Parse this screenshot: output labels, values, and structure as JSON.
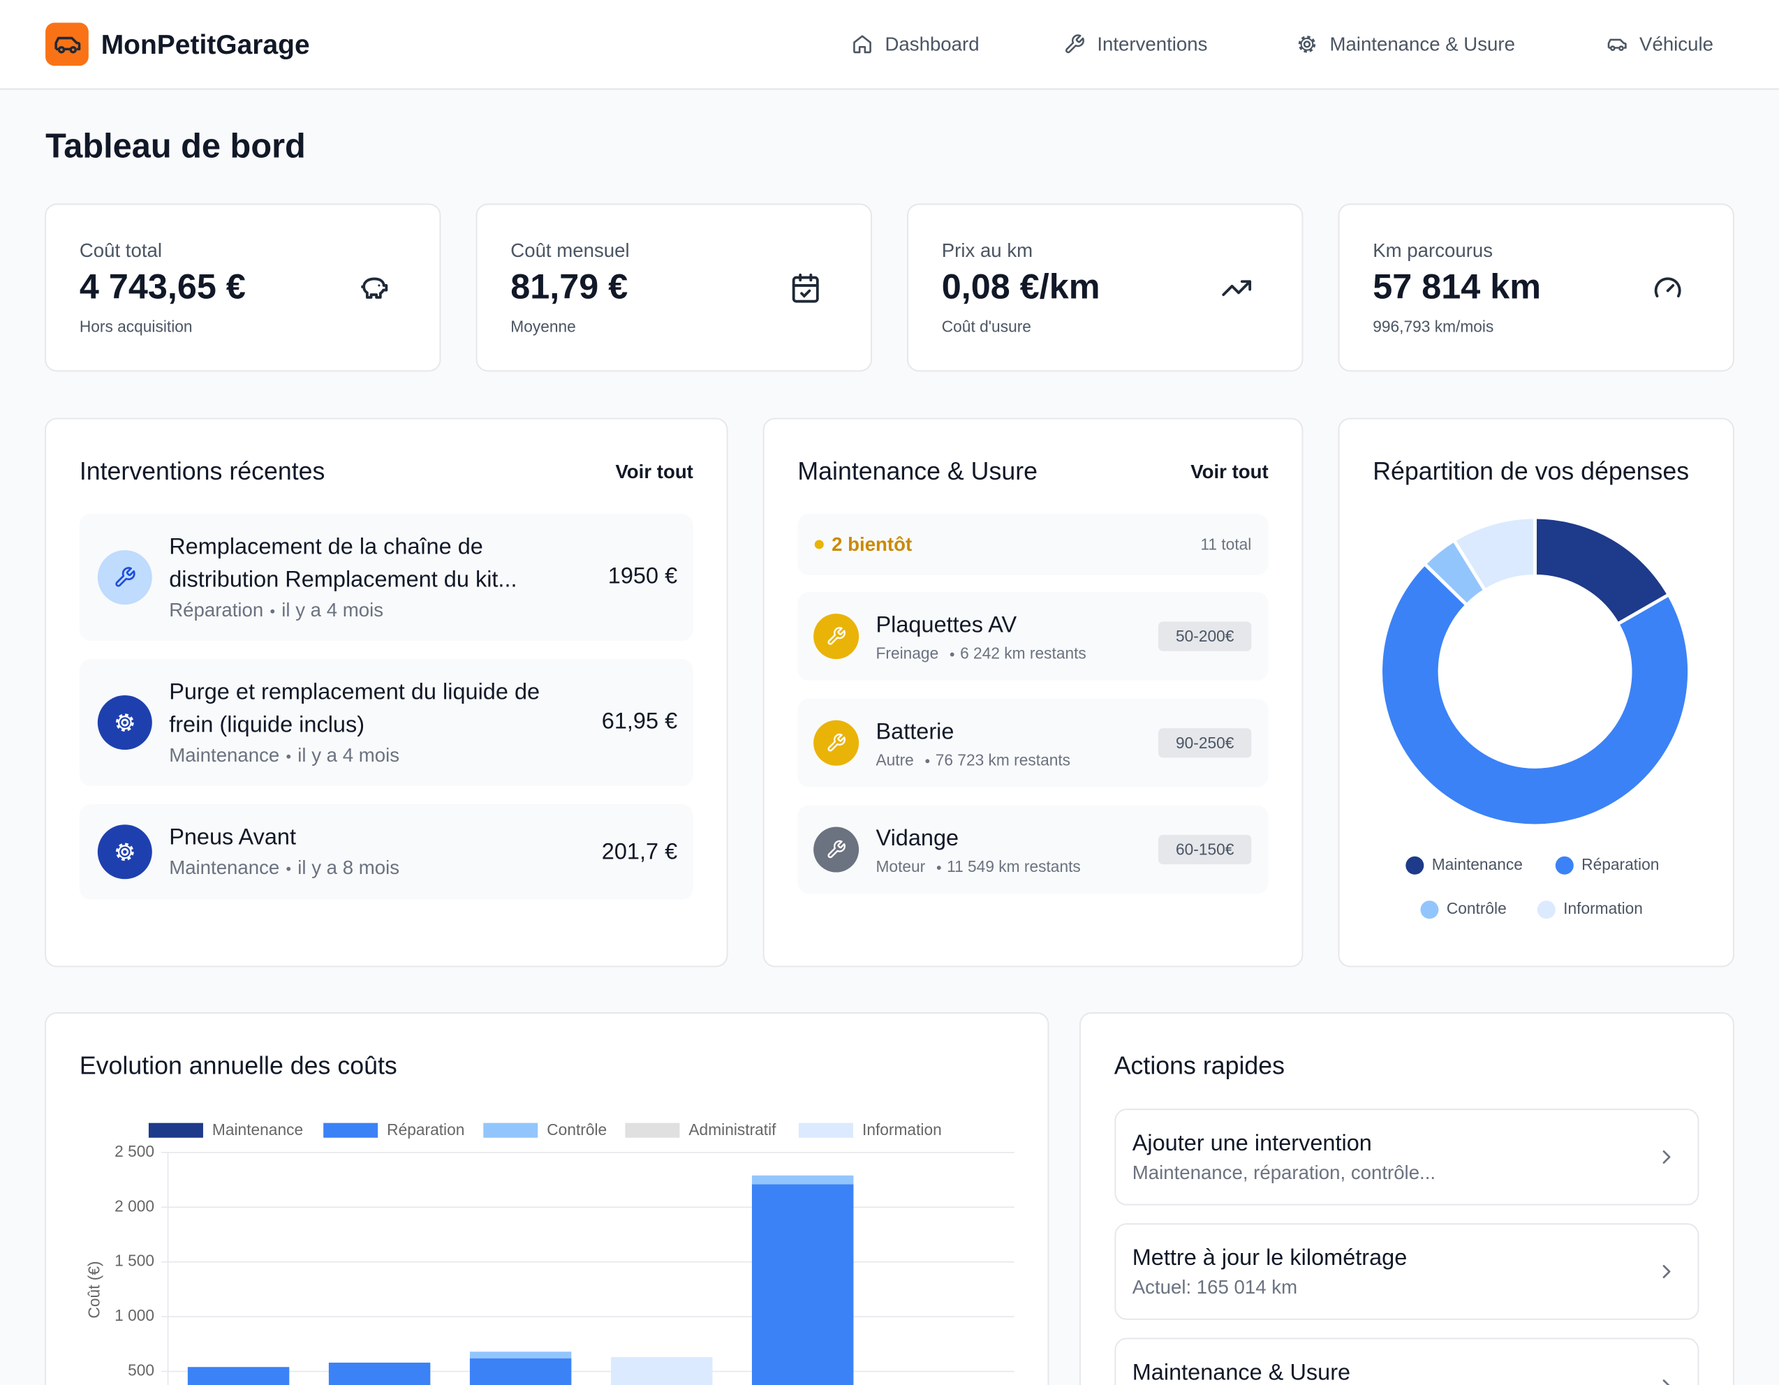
{
  "header": {
    "brand": "MonPetitGarage",
    "nav": [
      "Dashboard",
      "Interventions",
      "Maintenance & Usure",
      "Véhicule"
    ]
  },
  "page_title": "Tableau de bord",
  "stats": [
    {
      "label": "Coût total",
      "value": "4 743,65 €",
      "note": "Hors acquisition"
    },
    {
      "label": "Coût mensuel",
      "value": "81,79 €",
      "note": "Moyenne"
    },
    {
      "label": "Prix au km",
      "value": "0,08 €/km",
      "note": "Coût d'usure"
    },
    {
      "label": "Km parcourus",
      "value": "57 814 km",
      "note": "996,793 km/mois"
    }
  ],
  "recent_interventions": {
    "title": "Interventions récentes",
    "link": "Voir tout",
    "items": [
      {
        "title_lines": [
          "Remplacement de la chaîne de",
          "distribution Remplacement du kit..."
        ],
        "category": "Réparation",
        "time": "il y a 4 mois",
        "amount": "1950 €"
      },
      {
        "title_lines": [
          "Purge et remplacement du liquide de",
          "frein (liquide inclus)"
        ],
        "category": "Maintenance",
        "time": "il y a 4 mois",
        "amount": "61,95 €"
      },
      {
        "title_lines": [
          "Pneus Avant"
        ],
        "category": "Maintenance",
        "time": "il y a 8 mois",
        "amount": "201,7 €"
      }
    ]
  },
  "maintenance": {
    "title": "Maintenance & Usure",
    "link": "Voir tout",
    "status": "2 bientôt",
    "total": "11 total",
    "items": [
      {
        "name": "Plaquettes AV",
        "category": "Freinage",
        "remaining": "6 242 km restants",
        "price_range": "50-200€"
      },
      {
        "name": "Batterie",
        "category": "Autre",
        "remaining": "76 723 km restants",
        "price_range": "90-250€"
      },
      {
        "name": "Vidange",
        "category": "Moteur",
        "remaining": "11 549 km restants",
        "price_range": "60-150€"
      }
    ]
  },
  "expense_breakdown": {
    "type": "pie",
    "title": "Répartition de vos dépenses",
    "categories": [
      "Maintenance",
      "Réparation",
      "Contrôle",
      "Information"
    ],
    "values": [
      16.7,
      70.6,
      3.9,
      8.8
    ],
    "colors": [
      "#1e3a8a",
      "#3b82f6",
      "#93c5fd",
      "#dbeafe"
    ]
  },
  "cost_chart": {
    "type": "bar",
    "stacked": true,
    "title": "Evolution annuelle des coûts",
    "y_label": "Coût (€)",
    "categories": [
      null,
      null,
      null,
      null,
      null,
      null
    ],
    "series": [
      {
        "name": "Maintenance",
        "color": "#1e3a8a",
        "values": [
          0,
          0,
          0,
          0,
          0,
          0
        ]
      },
      {
        "name": "Réparation",
        "color": "#3b82f6",
        "values": [
          540,
          580,
          620,
          0,
          2210,
          0
        ]
      },
      {
        "name": "Contrôle",
        "color": "#93c5fd",
        "values": [
          0,
          0,
          60,
          0,
          80,
          0
        ]
      },
      {
        "name": "Administratif",
        "color": "#e0e0e0",
        "values": [
          0,
          0,
          0,
          0,
          0,
          0
        ]
      },
      {
        "name": "Information",
        "color": "#dbeafe",
        "values": [
          0,
          0,
          0,
          630,
          0,
          0
        ]
      }
    ],
    "ylim": [
      0,
      2500
    ],
    "yticks": [
      500,
      {
        "value": 1000,
        "label": "1 000"
      },
      {
        "value": 1500,
        "label": "1 500"
      },
      {
        "value": 2000,
        "label": "2 000"
      },
      {
        "value": 2500,
        "label": "2 500"
      }
    ],
    "grid": true
  },
  "quick_actions": {
    "title": "Actions rapides",
    "items": [
      {
        "title": "Ajouter une intervention",
        "subtitle": "Maintenance, réparation, contrôle..."
      },
      {
        "title": "Mettre à jour le kilométrage",
        "subtitle": "Actuel: 165 014 km"
      },
      {
        "title": "Maintenance & Usure"
      }
    ]
  }
}
